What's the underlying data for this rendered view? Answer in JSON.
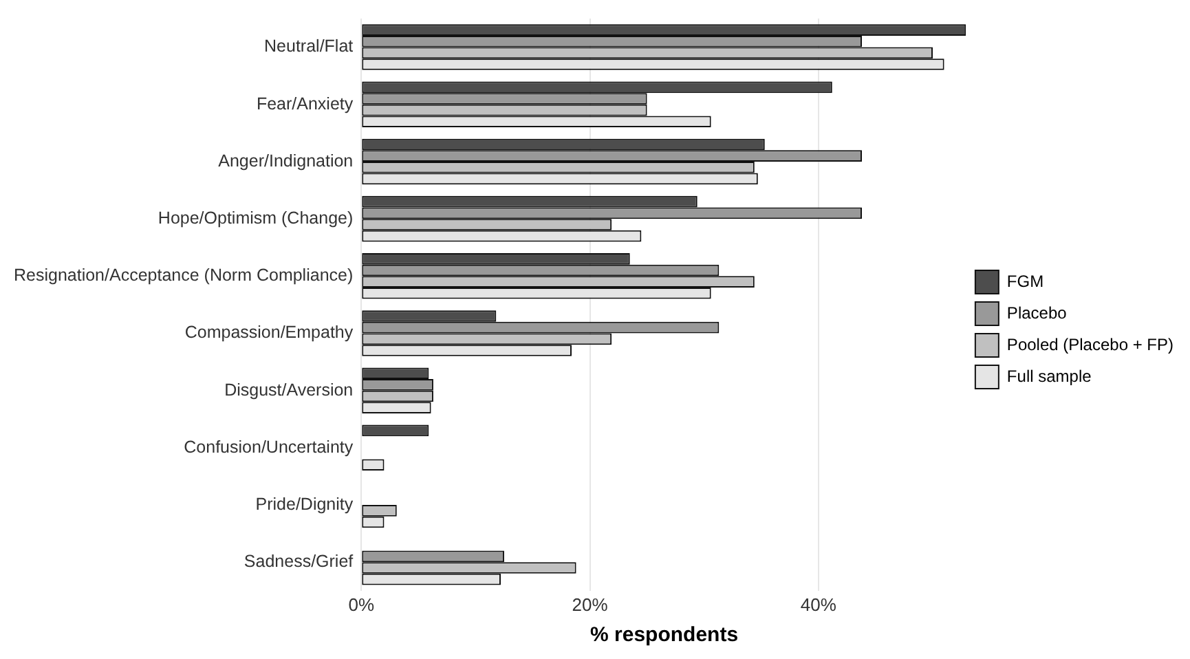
{
  "chart_data": {
    "type": "bar",
    "orientation": "horizontal",
    "xlabel": "% respondents",
    "categories": [
      "Neutral/Flat",
      "Fear/Anxiety",
      "Anger/Indignation",
      "Hope/Optimism (Change)",
      "Resignation/Acceptance (Norm Compliance)",
      "Compassion/Empathy",
      "Disgust/Aversion",
      "Confusion/Uncertainty",
      "Pride/Dignity",
      "Sadness/Grief"
    ],
    "series": [
      {
        "name": "FGM",
        "color": "#4d4d4d",
        "values": [
          52.9,
          41.2,
          35.3,
          29.4,
          23.5,
          11.8,
          5.9,
          5.9,
          0,
          0
        ]
      },
      {
        "name": "Placebo",
        "color": "#999999",
        "values": [
          43.8,
          25.0,
          43.8,
          43.8,
          31.3,
          31.3,
          6.3,
          0,
          0,
          12.5
        ]
      },
      {
        "name": "Pooled (Placebo + FP)",
        "color": "#c0c0c0",
        "values": [
          50.0,
          25.0,
          34.4,
          21.9,
          34.4,
          21.9,
          6.3,
          0,
          3.1,
          18.8
        ]
      },
      {
        "name": "Full sample",
        "color": "#e5e5e5",
        "values": [
          51.0,
          30.6,
          34.7,
          24.5,
          30.6,
          18.4,
          6.1,
          2.0,
          2.0,
          12.2
        ]
      }
    ],
    "xlim": [
      0,
      53
    ],
    "xticks": [
      {
        "value": 0,
        "label": "0%"
      },
      {
        "value": 20,
        "label": "20%"
      },
      {
        "value": 40,
        "label": "40%"
      }
    ],
    "grid": "x",
    "legend": "right"
  }
}
